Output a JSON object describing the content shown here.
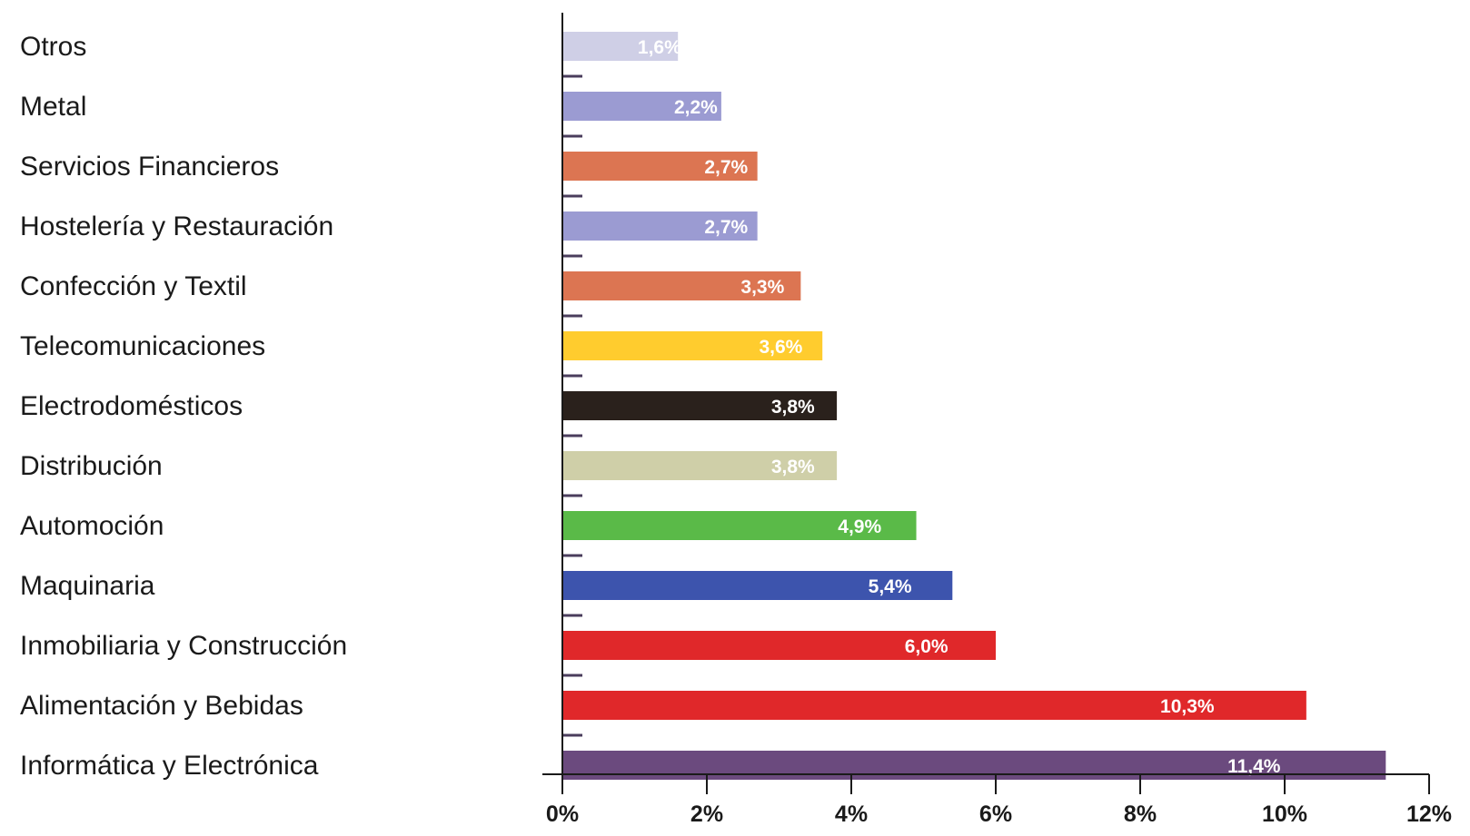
{
  "chart_data": {
    "type": "bar",
    "orientation": "horizontal",
    "title": "",
    "xlabel": "",
    "ylabel": "",
    "xlim": [
      0,
      12
    ],
    "x_ticks": [
      0,
      2,
      4,
      6,
      8,
      10,
      12
    ],
    "x_tick_labels": [
      "0%",
      "2%",
      "4%",
      "6%",
      "8%",
      "10%",
      "12%"
    ],
    "grid": false,
    "legend": "none",
    "categories": [
      "Otros",
      "Metal",
      "Servicios Financieros",
      "Hostelería y Restauración",
      "Confección y Textil",
      "Telecomunicaciones",
      "Electrodomésticos",
      "Distribución",
      "Automoción",
      "Maquinaria",
      "Inmobiliaria y Construcción",
      "Alimentación y Bebidas",
      "Informática y Electrónica"
    ],
    "values": [
      1.6,
      2.2,
      2.7,
      2.7,
      3.3,
      3.6,
      3.8,
      3.8,
      4.9,
      5.4,
      6.0,
      10.3,
      11.4
    ],
    "value_labels": [
      "1,6%",
      "2,2%",
      "2,7%",
      "2,7%",
      "3,3%",
      "3,6%",
      "3,8%",
      "3,8%",
      "4,9%",
      "5,4%",
      "6,0%",
      "10,3%",
      "11,4%"
    ],
    "colors": [
      "#cfcfe6",
      "#9b9bd2",
      "#dc7552",
      "#9b9bd2",
      "#dc7552",
      "#ffcc2e",
      "#2a211c",
      "#cfcfa8",
      "#5aba48",
      "#3d54ad",
      "#e0282a",
      "#e0282a",
      "#6b4a7e"
    ],
    "label_colors": [
      "#ffffff",
      "#ffffff",
      "#ffffff",
      "#ffffff",
      "#ffffff",
      "#ffffff",
      "#ffffff",
      "#ffffff",
      "#ffffff",
      "#ffffff",
      "#ffffff",
      "#ffffff",
      "#ffffff"
    ]
  }
}
